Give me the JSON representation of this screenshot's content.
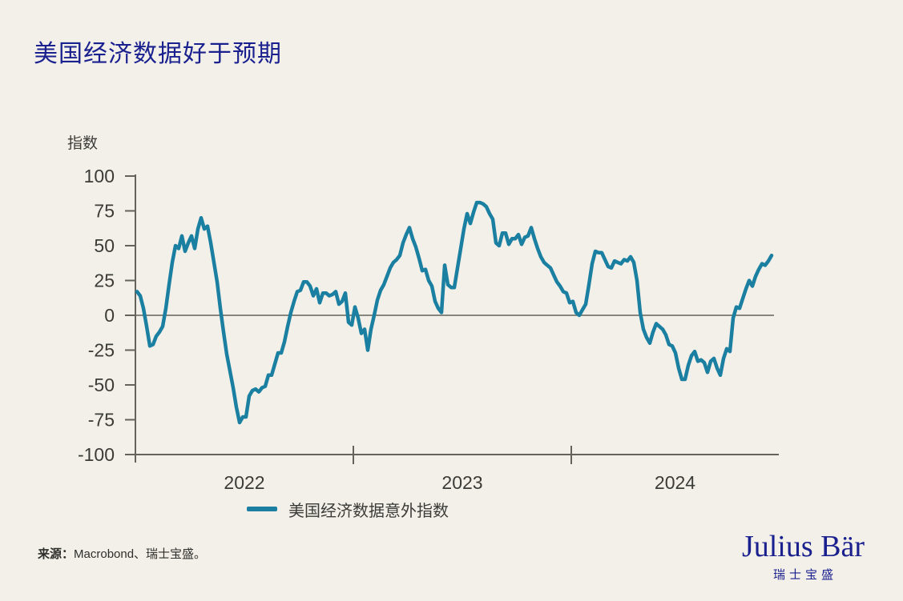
{
  "colors": {
    "background": "#f2f0e9",
    "brand_navy": "#1a208e",
    "line_teal": "#1a7fa0",
    "axis": "#63635c",
    "text_dark": "#3b3b37",
    "source_text": "#2e2e2a"
  },
  "chart_data": {
    "type": "line",
    "title": "美国经济数据好于预期",
    "xlabel": "",
    "ylabel": "指数",
    "ylim": [
      -100,
      100
    ],
    "y_ticks": [
      100,
      75,
      50,
      25,
      0,
      -25,
      -50,
      -75,
      -100
    ],
    "x_tick_labels": [
      "2022",
      "2023",
      "2024"
    ],
    "grid": false,
    "zero_line": true,
    "legend_position": "bottom",
    "series": [
      {
        "name": "美国经济数据意外指数",
        "color": "#1a7fa0",
        "x_start_year": 2022.0074,
        "x_step_years": 0.014706,
        "values": [
          17,
          14,
          5,
          -8,
          -22,
          -21,
          -15,
          -12,
          -8,
          5,
          22,
          38,
          50,
          48,
          57,
          46,
          52,
          57,
          48,
          62,
          70,
          62,
          64,
          52,
          38,
          24,
          5,
          -12,
          -28,
          -40,
          -52,
          -66,
          -77,
          -73,
          -73,
          -58,
          -54,
          -53,
          -55,
          -52,
          -51,
          -43,
          -43,
          -35,
          -27,
          -27,
          -19,
          -8,
          2,
          10,
          17,
          18,
          24,
          24,
          21,
          14,
          19,
          9,
          16,
          16,
          14,
          15,
          17,
          8,
          10,
          16,
          -5,
          -7,
          6,
          -2,
          -13,
          -10,
          -25,
          -10,
          0,
          11,
          18,
          22,
          28,
          34,
          38,
          40,
          43,
          52,
          58,
          63,
          55,
          49,
          41,
          32,
          33,
          25,
          21,
          10,
          5,
          2,
          36,
          22,
          20,
          20,
          34,
          48,
          62,
          73,
          66,
          74,
          81,
          81,
          80,
          78,
          73,
          69,
          52,
          50,
          59,
          59,
          51,
          55,
          55,
          58,
          51,
          56,
          57,
          63,
          55,
          48,
          42,
          38,
          36,
          34,
          29,
          24,
          21,
          17,
          16,
          9,
          10,
          2,
          0,
          4,
          8,
          22,
          37,
          46,
          45,
          45,
          40,
          35,
          34,
          39,
          38,
          37,
          40,
          39,
          42,
          38,
          25,
          2,
          -10,
          -16,
          -20,
          -12,
          -6,
          -8,
          -10,
          -14,
          -21,
          -22,
          -27,
          -38,
          -46,
          -46,
          -36,
          -29,
          -26,
          -33,
          -32,
          -34,
          -41,
          -33,
          -31,
          -38,
          -43,
          -31,
          -24,
          -26,
          -2,
          6,
          5,
          12,
          19,
          25,
          21,
          28,
          33,
          37,
          36,
          39,
          43
        ]
      }
    ]
  },
  "footer": {
    "source_label": "来源：",
    "source_text": "Macrobond、瑞士宝盛。"
  },
  "brand": {
    "wordmark": "Julius Bär",
    "subtitle": "瑞士宝盛"
  }
}
